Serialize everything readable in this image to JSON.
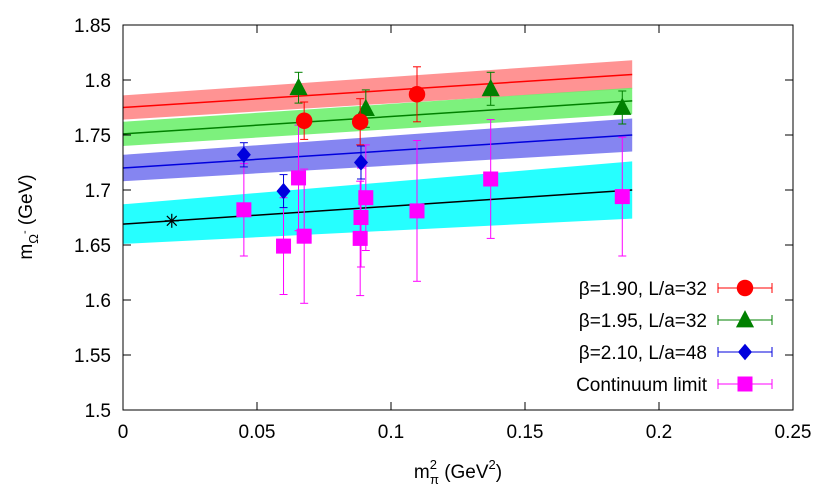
{
  "chart_data": {
    "type": "scatter",
    "xlabel": {
      "base": "m",
      "sup": "2",
      "sub": "π",
      "unit_open": " (GeV",
      "unit_sup": "2",
      "unit_close": ")"
    },
    "ylabel": {
      "base": "m",
      "sub": "Ω",
      "subsup": "-",
      "unit": " (GeV)"
    },
    "xlim": [
      0,
      0.25
    ],
    "ylim": [
      1.5,
      1.85
    ],
    "xticks": [
      0,
      0.05,
      0.1,
      0.15,
      0.2,
      0.25
    ],
    "xtick_labels": [
      "0",
      "0.05",
      "0.1",
      "0.15",
      "0.2",
      "0.25"
    ],
    "yticks": [
      1.5,
      1.55,
      1.6,
      1.65,
      1.7,
      1.75,
      1.8,
      1.85
    ],
    "ytick_labels": [
      "1.5",
      "1.55",
      "1.6",
      "1.65",
      "1.7",
      "1.75",
      "1.8",
      "1.85"
    ],
    "grid": false,
    "legend_position": "bottom-right",
    "physical_point": {
      "x": 0.0182,
      "y": 1.672,
      "marker": "asterisk",
      "color": "#000000"
    },
    "series": [
      {
        "name": "β=1.90, L/a=32",
        "color": "#ff0000",
        "band_color": "#ff8080",
        "marker": "circle",
        "fit": {
          "x": [
            0,
            0.19
          ],
          "y": [
            1.775,
            1.805
          ],
          "band_halfwidth": [
            0.011,
            0.013
          ]
        },
        "points": [
          {
            "x": 0.0676,
            "y": 1.763,
            "err": 0.017
          },
          {
            "x": 0.0885,
            "y": 1.762,
            "err": 0.021
          },
          {
            "x": 0.1097,
            "y": 1.787,
            "err": 0.025
          }
        ]
      },
      {
        "name": "β=1.95, L/a=32",
        "color": "#008000",
        "band_color": "#66ee66",
        "marker": "triangle",
        "fit": {
          "x": [
            0,
            0.19
          ],
          "y": [
            1.751,
            1.781
          ],
          "band_halfwidth": [
            0.011,
            0.012
          ]
        },
        "points": [
          {
            "x": 0.0655,
            "y": 1.793,
            "err": 0.014
          },
          {
            "x": 0.0906,
            "y": 1.774,
            "err": 0.017
          },
          {
            "x": 0.1372,
            "y": 1.792,
            "err": 0.015
          },
          {
            "x": 0.1863,
            "y": 1.775,
            "err": 0.015
          }
        ]
      },
      {
        "name": "β=2.10, L/a=48",
        "color": "#0000dd",
        "band_color": "#7070ee",
        "marker": "diamond",
        "fit": {
          "x": [
            0,
            0.19
          ],
          "y": [
            1.72,
            1.75
          ],
          "band_halfwidth": [
            0.012,
            0.015
          ]
        },
        "points": [
          {
            "x": 0.0451,
            "y": 1.732,
            "err": 0.011
          },
          {
            "x": 0.0599,
            "y": 1.699,
            "err": 0.015
          },
          {
            "x": 0.0888,
            "y": 1.725,
            "err": 0.015
          }
        ]
      },
      {
        "name": "Continuum limit",
        "color": "#ff00ff",
        "band_color": "#00ffff",
        "marker": "square",
        "fit": {
          "x": [
            0,
            0.19
          ],
          "y": [
            1.669,
            1.7
          ],
          "band_halfwidth": [
            0.018,
            0.026
          ]
        },
        "points": [
          {
            "x": 0.0451,
            "y": 1.682,
            "err": 0.042
          },
          {
            "x": 0.0599,
            "y": 1.649,
            "err": 0.044
          },
          {
            "x": 0.0655,
            "y": 1.711,
            "err": 0.048
          },
          {
            "x": 0.0676,
            "y": 1.658,
            "err": 0.061
          },
          {
            "x": 0.0885,
            "y": 1.656,
            "err": 0.052
          },
          {
            "x": 0.0888,
            "y": 1.675,
            "err": 0.045
          },
          {
            "x": 0.0906,
            "y": 1.693,
            "err": 0.048
          },
          {
            "x": 0.1097,
            "y": 1.681,
            "err": 0.064
          },
          {
            "x": 0.1372,
            "y": 1.71,
            "err": 0.054
          },
          {
            "x": 0.1863,
            "y": 1.694,
            "err": 0.054
          }
        ]
      }
    ]
  }
}
